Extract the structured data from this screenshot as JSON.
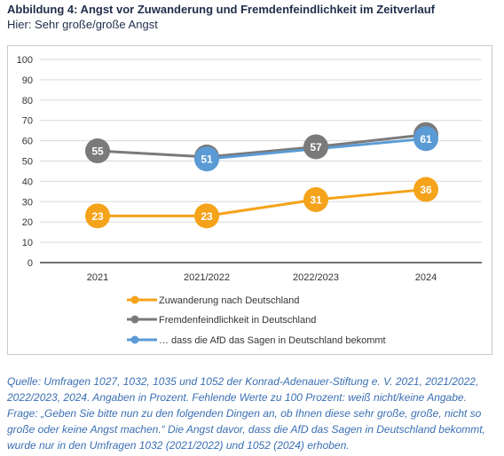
{
  "figure": {
    "title": "Abbildung 4: Angst vor Zuwanderung und Fremdenfeindlichkeit im Zeitverlauf",
    "subtitle": "Hier: Sehr große/große Angst"
  },
  "chart_data": {
    "type": "line",
    "categories": [
      "2021",
      "2021/2022",
      "2022/2023",
      "2024"
    ],
    "ylim": [
      0,
      100
    ],
    "yticks": [
      0,
      10,
      20,
      30,
      40,
      50,
      60,
      70,
      80,
      90,
      100
    ],
    "grid": true,
    "legend_position": "bottom",
    "data_labels": true,
    "series": [
      {
        "name": "Zuwanderung nach Deutschland",
        "color": "#f5a31a",
        "values": [
          23,
          23,
          31,
          36
        ]
      },
      {
        "name": "Fremdenfeindlichkeit in Deutschland",
        "color": "#7a7a7a",
        "values": [
          55,
          52,
          57,
          63
        ]
      },
      {
        "name": "… dass die AfD das Sagen in Deutschland bekommt",
        "color": "#5b9bd5",
        "values": [
          null,
          51,
          null,
          61
        ]
      }
    ]
  },
  "source_note": "Quelle: Umfragen 1027, 1032, 1035 und 1052 der Konrad-Adenauer-Stiftung e. V. 2021, 2021/2022, 2022/2023, 2024. Angaben in Prozent. Fehlende Werte zu 100 Prozent: weiß nicht/keine Angabe. Frage: „Geben Sie bitte nun zu den folgenden Dingen an, ob Ihnen diese sehr große, große, nicht so große oder keine Angst machen.“ Die Angst davor, dass die AfD das Sagen in Deutschland bekommt, wurde nur in den Umfragen 1032 (2021/2022) und 1052 (2024) erhoben."
}
